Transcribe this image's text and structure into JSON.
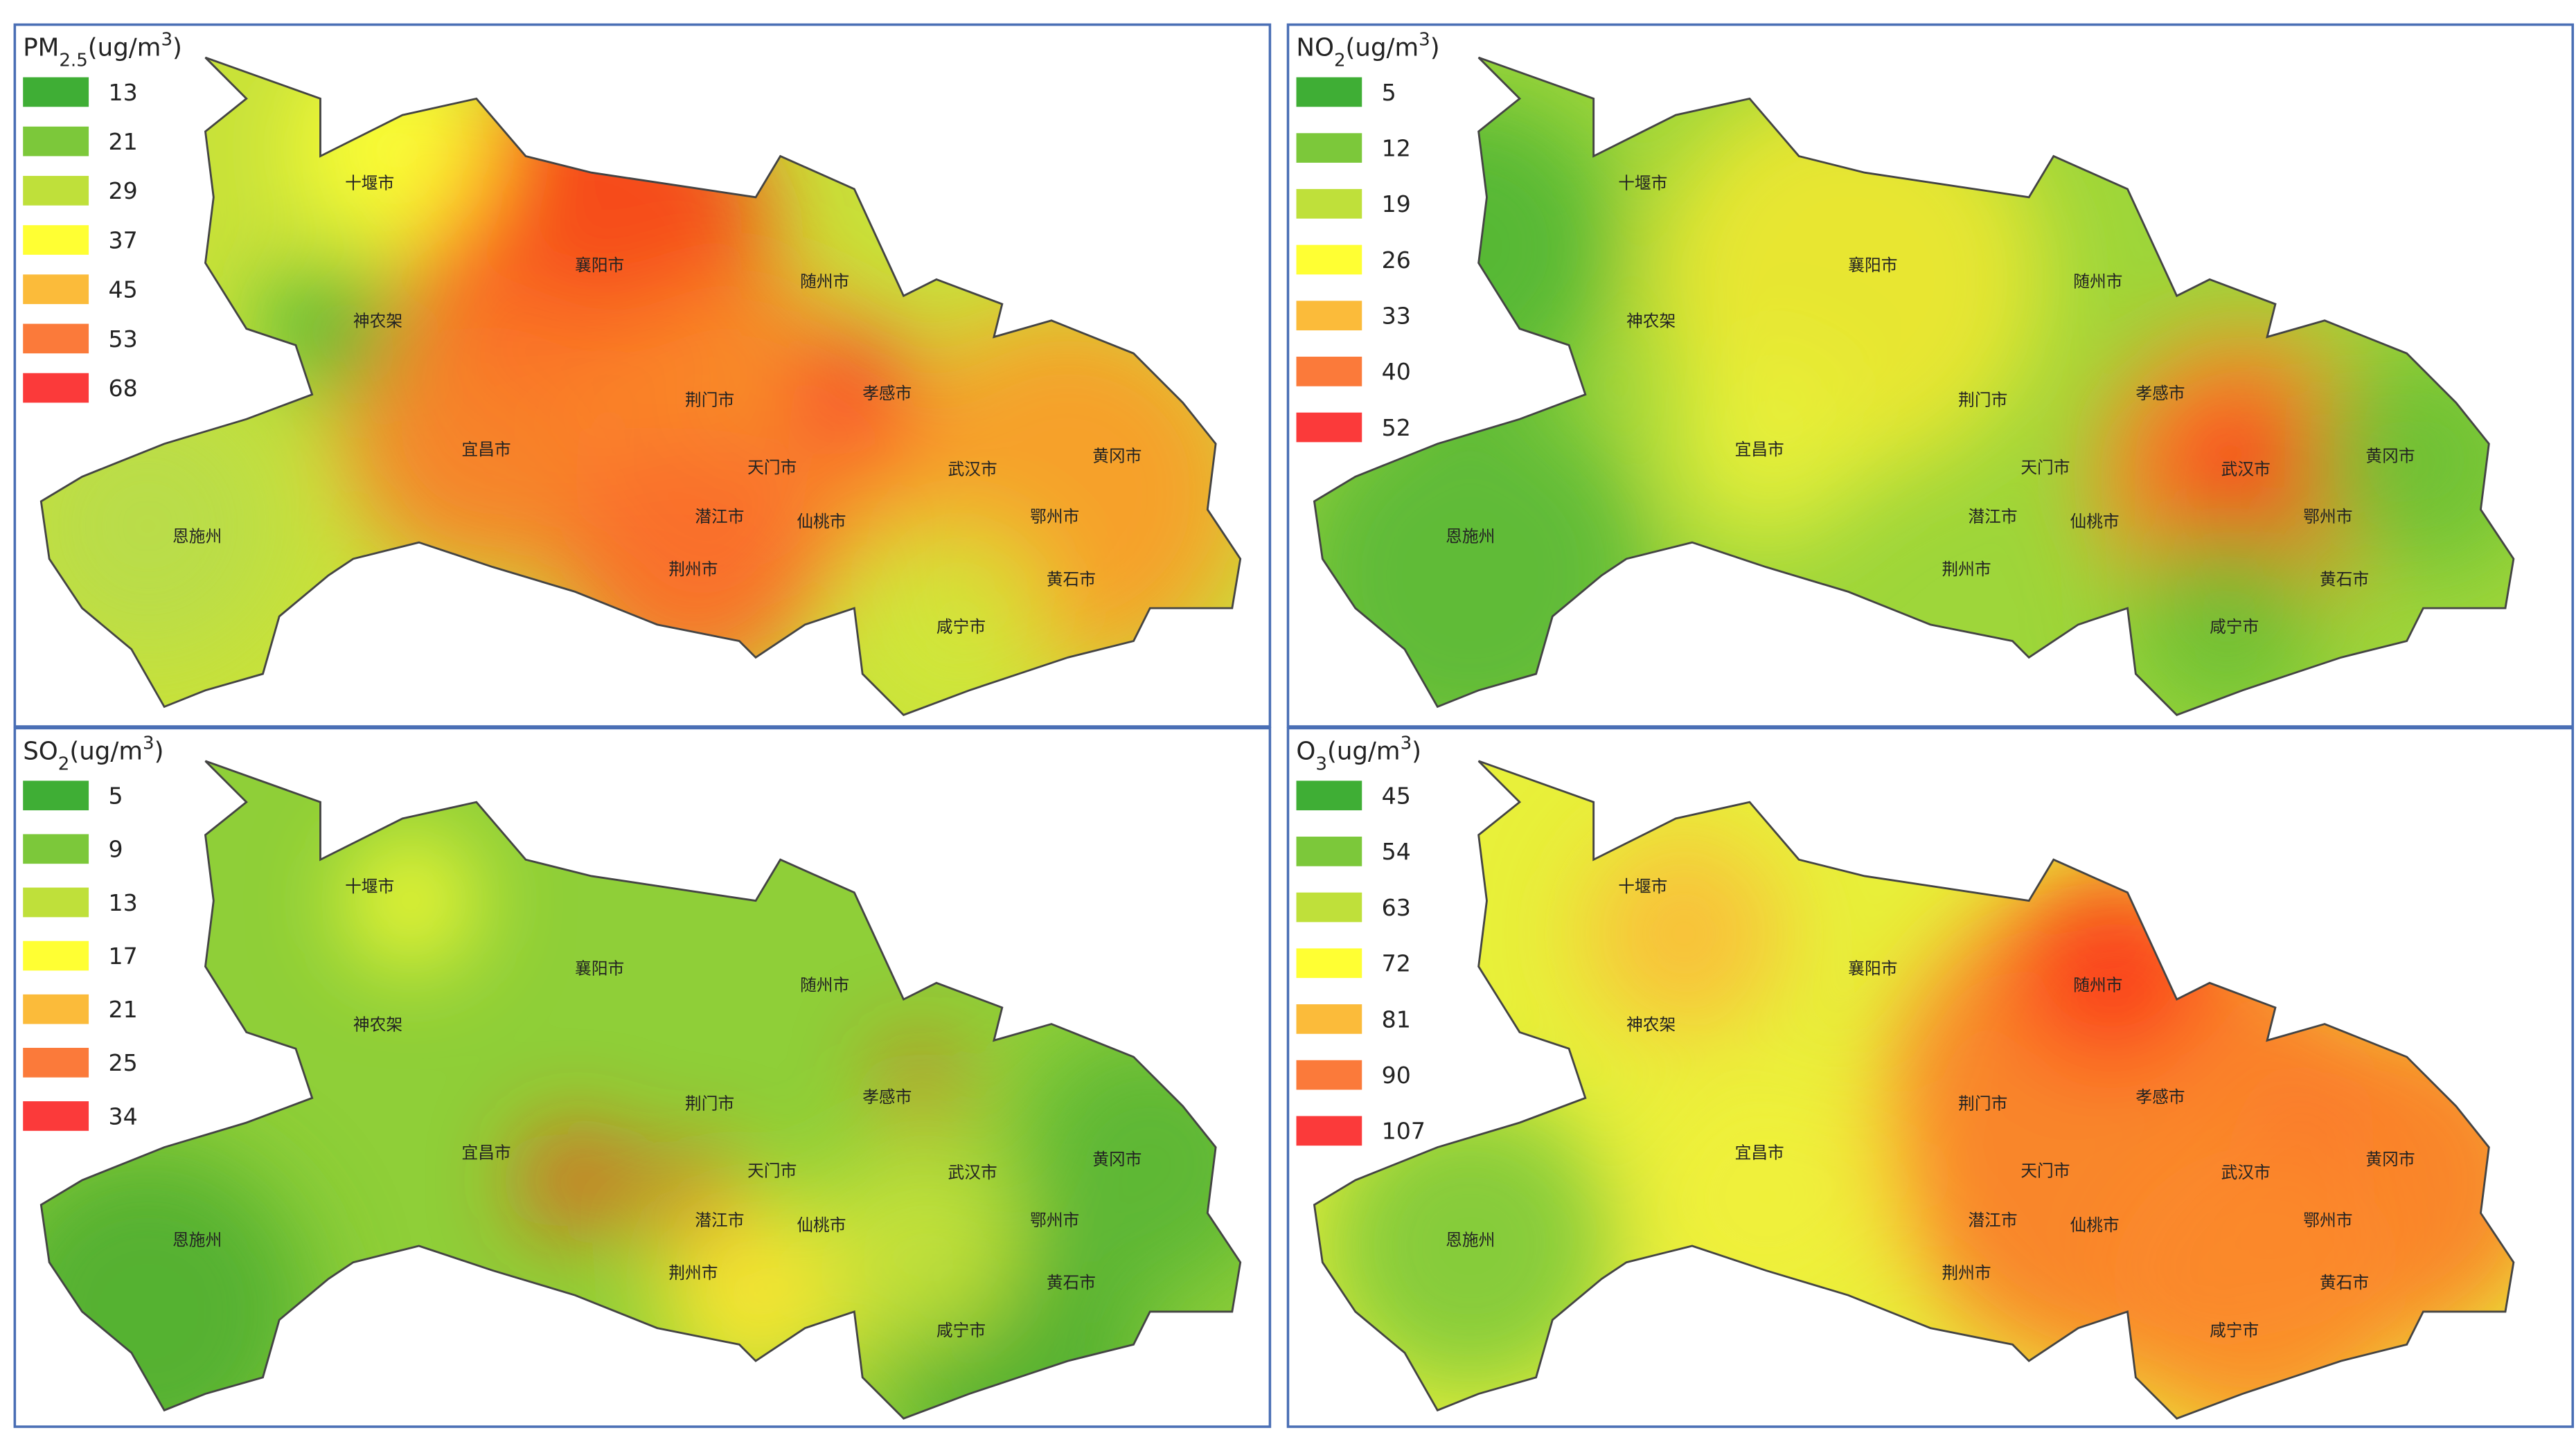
{
  "maps": [
    {
      "title": [
        "PM",
        "2.5",
        "(ug/m",
        "3",
        ")"
      ],
      "legend": [
        13,
        21,
        29,
        37,
        45,
        53,
        68
      ]
    },
    {
      "title": [
        "NO",
        "2",
        "(ug/m",
        "3",
        ")"
      ],
      "legend": [
        5,
        12,
        19,
        26,
        33,
        40,
        52
      ]
    },
    {
      "title": [
        "SO",
        "2",
        "(ug/m",
        "3",
        ")"
      ],
      "legend": [
        5,
        9,
        13,
        17,
        21,
        25,
        34
      ]
    },
    {
      "title": [
        "O",
        "3",
        "(ug/m",
        "3",
        ")"
      ],
      "legend": [
        45,
        54,
        63,
        72,
        81,
        90,
        107
      ]
    }
  ],
  "legend_colors": [
    "#3fae35",
    "#7cc83a",
    "#bfe03a",
    "#ffff33",
    "#fbbb3a",
    "#fb7a3a",
    "#fb3a3a"
  ],
  "cities": [
    "十堰市",
    "神农架",
    "襄阳市",
    "随州市",
    "宜昌市",
    "荆门市",
    "孝感市",
    "天门市",
    "潜江市",
    "仙桃市",
    "武汉市",
    "黄冈市",
    "鄂州市",
    "荆州市",
    "黄石市",
    "恩施州",
    "咸宁市"
  ]
}
